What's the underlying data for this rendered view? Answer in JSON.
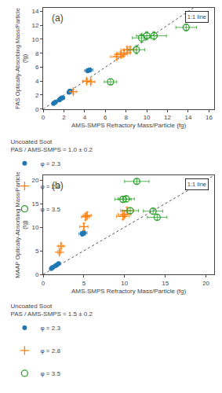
{
  "chart_data": [
    {
      "type": "scatter",
      "title": "(a)",
      "xlabel": "AMS-SMPS Refractory Mass/Particle (fg)",
      "ylabel": "PAS Optically-Absorbing Mass/Particle\n(fg)",
      "xlim": [
        0,
        16.5
      ],
      "ylim": [
        0,
        14.5
      ],
      "xticks": [
        0,
        2,
        4,
        6,
        8,
        10,
        12,
        14,
        16
      ],
      "yticks": [
        0,
        2,
        4,
        6,
        8,
        10,
        12,
        14
      ],
      "grid": false,
      "legend": "bottom",
      "legend_title": "Uncoated Soot\nPAS / AMS-SMPS = 1.0 ± 0.2",
      "annotations": [
        {
          "text": "1:1 line"
        }
      ],
      "series": [
        {
          "type": "line",
          "line_style": "dotted",
          "x": [
            0,
            14.5
          ],
          "values": [
            0,
            14.5
          ]
        },
        {
          "name": "φ = 2.3",
          "marker": "circle",
          "x": [
            1.0,
            1.1,
            1.2,
            1.55,
            1.65,
            1.7,
            1.8,
            1.9,
            2.5,
            2.6,
            4.3,
            4.5
          ],
          "values": [
            0.8,
            0.9,
            1.0,
            1.3,
            1.45,
            1.5,
            1.6,
            1.6,
            2.4,
            2.6,
            5.5,
            5.6
          ],
          "xerr": [
            0.1,
            0.1,
            0.1,
            0.1,
            0.1,
            0.1,
            0.1,
            0.1,
            0.2,
            0.2,
            0.3,
            0.3
          ],
          "yerr": [
            0.1,
            0.1,
            0.1,
            0.1,
            0.1,
            0.1,
            0.1,
            0.1,
            0.2,
            0.2,
            0.3,
            0.3
          ]
        },
        {
          "name": "φ = 2.8",
          "marker": "plus",
          "x": [
            2.9,
            4.2,
            4.6,
            7.1,
            7.5,
            7.8,
            8.1,
            8.4
          ],
          "values": [
            2.5,
            4.0,
            3.9,
            7.5,
            7.8,
            8.0,
            8.5,
            8.5
          ],
          "xerr": [
            0.3,
            0.4,
            0.4,
            0.6,
            0.6,
            0.6,
            0.6,
            0.6
          ],
          "yerr": [
            0.3,
            0.3,
            0.3,
            0.4,
            0.4,
            0.4,
            0.4,
            0.4
          ]
        },
        {
          "name": "φ = 3.5",
          "marker": "circle-open",
          "x": [
            6.5,
            9.0,
            9.5,
            10.0,
            10.7,
            13.8
          ],
          "values": [
            3.9,
            8.5,
            10.2,
            10.5,
            10.5,
            11.7
          ],
          "xerr": [
            0.6,
            0.8,
            0.9,
            1.0,
            1.2,
            1.0
          ],
          "yerr": [
            0.4,
            0.6,
            0.6,
            0.6,
            0.6,
            0.5
          ]
        }
      ]
    },
    {
      "type": "scatter",
      "title": "(b)",
      "xlabel": "AMS-SMPS Refractory Mass/Particle (fg)",
      "ylabel": "MAAP Optically-Absorbing Mass/Particle\n(fg)",
      "xlim": [
        0,
        21
      ],
      "ylim": [
        0,
        21
      ],
      "xticks": [
        0,
        5,
        10,
        15,
        20
      ],
      "yticks": [
        0,
        5,
        10,
        15,
        20
      ],
      "grid": false,
      "legend": "bottom",
      "legend_title": "Uncoated Soot\nPAS / AMS-SMPS = 1.5 ± 0.2",
      "annotations": [
        {
          "text": "1:1 line"
        }
      ],
      "series": [
        {
          "type": "line",
          "line_style": "dotted",
          "x": [
            0,
            21
          ],
          "values": [
            0,
            21
          ]
        },
        {
          "name": "φ = 2.3",
          "marker": "circle",
          "x": [
            1.0,
            1.1,
            1.2,
            1.5,
            1.7,
            1.9,
            4.8,
            5.0
          ],
          "values": [
            1.2,
            1.4,
            1.5,
            1.8,
            2.0,
            2.3,
            8.6,
            8.8
          ],
          "xerr": [
            0.1,
            0.1,
            0.1,
            0.1,
            0.1,
            0.2,
            0.4,
            0.4
          ],
          "yerr": [
            0.1,
            0.1,
            0.1,
            0.1,
            0.2,
            0.2,
            0.5,
            0.5
          ]
        },
        {
          "name": "φ = 2.8",
          "marker": "plus",
          "x": [
            2.0,
            2.2,
            5.0,
            5.2,
            5.4,
            9.8,
            10.0,
            10.3
          ],
          "values": [
            4.7,
            6.0,
            10.1,
            12.2,
            12.5,
            12.3,
            12.7,
            13.5
          ],
          "xerr": [
            0.2,
            0.3,
            0.5,
            0.5,
            0.5,
            0.8,
            0.8,
            0.8
          ],
          "yerr": [
            0.4,
            0.5,
            0.7,
            0.7,
            0.7,
            0.7,
            0.7,
            0.7
          ]
        },
        {
          "name": "φ = 3.5",
          "marker": "circle-open",
          "x": [
            9.8,
            10.2,
            10.7,
            13.5,
            14.0
          ],
          "values": [
            15.9,
            16.0,
            13.5,
            13.4,
            12.1
          ],
          "xerr": [
            1.0,
            1.0,
            1.0,
            1.2,
            1.2
          ],
          "yerr": [
            0.6,
            0.6,
            0.6,
            0.6,
            0.6
          ]
        },
        {
          "name": "φ = 3.5",
          "marker": "circle-open",
          "x": [
            11.5
          ],
          "values": [
            19.7
          ],
          "xerr": [
            1.5
          ],
          "yerr": [
            0.5
          ]
        }
      ]
    }
  ]
}
